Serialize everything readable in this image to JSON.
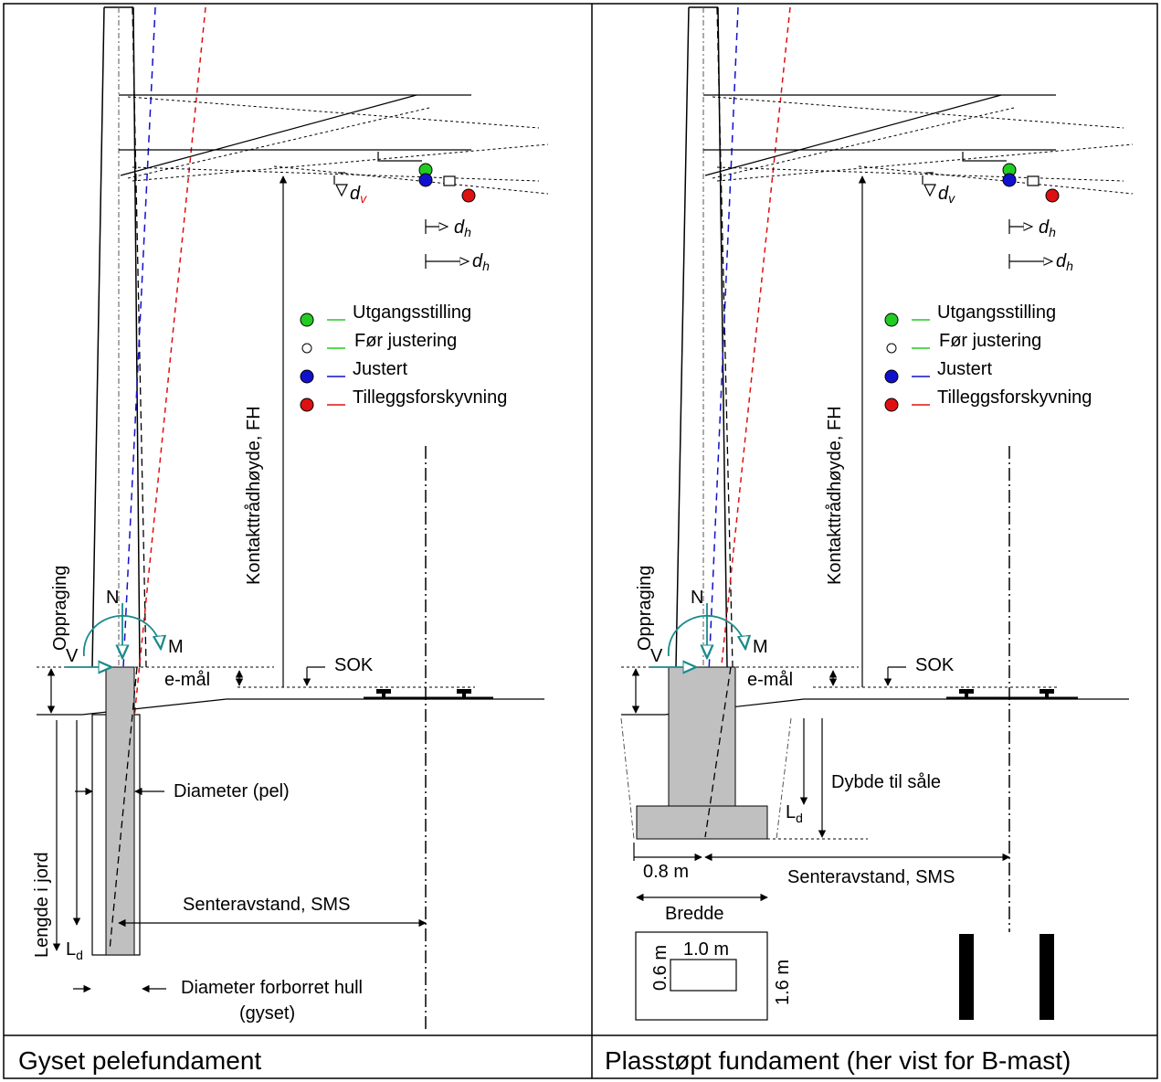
{
  "panels": [
    {
      "caption": "Gyset pelefundament",
      "labels": {
        "d_v": "d",
        "d_v_sub": "v",
        "d_h": "d",
        "d_h_sub": "h",
        "fh": "Kontakttrådhøyde, FH",
        "oppraging": "Oppraging",
        "n": "N",
        "v": "V",
        "m": "M",
        "sok": "SOK",
        "emaal": "e-mål",
        "diameter_pel": "Diameter (pel)",
        "lengde": "Lengde i jord",
        "ld": "L",
        "ld_sub": "d",
        "sms": "Senteravstand, SMS",
        "diameter_hull": "Diameter forborret hull",
        "gyset": "(gyset)"
      }
    },
    {
      "caption": "Plasstøpt fundament (her vist for B-mast)",
      "labels": {
        "d_v": "d",
        "d_v_sub": "v",
        "d_h": "d",
        "d_h_sub": "h",
        "fh": "Kontakttrådhøyde, FH",
        "oppraging": "Oppraging",
        "n": "N",
        "v": "V",
        "m": "M",
        "sok": "SOK",
        "emaal": "e-mål",
        "dybde": "Dybde til såle",
        "ld": "L",
        "ld_sub": "d",
        "w08": "0.8 m",
        "sms": "Senteravstand, SMS",
        "bredde": "Bredde",
        "w10": "1.0 m",
        "h06": "0.6 m",
        "h16": "1.6 m"
      }
    }
  ],
  "legend": [
    {
      "label": "Utgangsstilling",
      "fill": "#22cc22",
      "line": "#22cc22"
    },
    {
      "label": "Før justering",
      "fill": "#ffffff",
      "line": "#22cc22"
    },
    {
      "label": "Justert",
      "fill": "#1111cc",
      "line": "#1111cc"
    },
    {
      "label": "Tilleggsforskyvning",
      "fill": "#dd1111",
      "line": "#dd1111"
    }
  ],
  "colors": {
    "foundation_fill": "#c0c0c0",
    "green": "#22cc22",
    "blue": "#1111cc",
    "red": "#dd1111",
    "teal": "#1a8a8a",
    "border": "#000000"
  }
}
